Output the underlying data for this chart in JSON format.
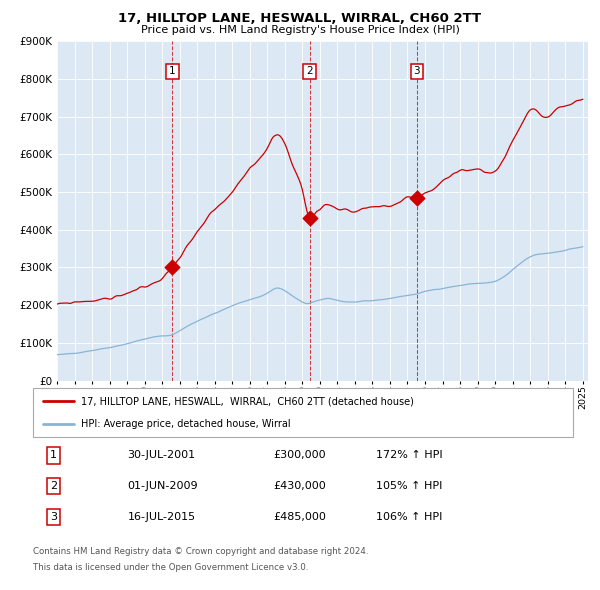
{
  "title": "17, HILLTOP LANE, HESWALL, WIRRAL, CH60 2TT",
  "subtitle": "Price paid vs. HM Land Registry's House Price Index (HPI)",
  "property_color": "#cc0000",
  "hpi_color": "#8ab4d4",
  "plot_bg": "#dce9f5",
  "ylim": [
    0,
    900000
  ],
  "yticks": [
    0,
    100000,
    200000,
    300000,
    400000,
    500000,
    600000,
    700000,
    800000,
    900000
  ],
  "xmin": 1995.0,
  "xmax": 2025.3,
  "sales": [
    {
      "num": 1,
      "date": "2001-07-30",
      "price": 300000,
      "pct": "172%",
      "x_year": 2001.58
    },
    {
      "num": 2,
      "date": "2009-06-01",
      "price": 430000,
      "pct": "105%",
      "x_year": 2009.42
    },
    {
      "num": 3,
      "date": "2015-07-16",
      "price": 485000,
      "pct": "106%",
      "x_year": 2015.54
    }
  ],
  "footer_line1": "Contains HM Land Registry data © Crown copyright and database right 2024.",
  "footer_line2": "This data is licensed under the Open Government Licence v3.0.",
  "legend_label1": "17, HILLTOP LANE, HESWALL,  WIRRAL,  CH60 2TT (detached house)",
  "legend_label2": "HPI: Average price, detached house, Wirral",
  "hpi_anchors": [
    [
      1995.0,
      68000
    ],
    [
      1996.0,
      73000
    ],
    [
      1997.0,
      80000
    ],
    [
      1998.0,
      88000
    ],
    [
      1999.0,
      98000
    ],
    [
      2000.0,
      110000
    ],
    [
      2001.0,
      118000
    ],
    [
      2001.58,
      122000
    ],
    [
      2002.0,
      132000
    ],
    [
      2003.0,
      158000
    ],
    [
      2004.0,
      178000
    ],
    [
      2005.0,
      198000
    ],
    [
      2006.0,
      215000
    ],
    [
      2007.0,
      232000
    ],
    [
      2007.5,
      245000
    ],
    [
      2008.0,
      238000
    ],
    [
      2008.5,
      222000
    ],
    [
      2009.0,
      208000
    ],
    [
      2009.42,
      205000
    ],
    [
      2009.5,
      206000
    ],
    [
      2010.0,
      213000
    ],
    [
      2010.5,
      218000
    ],
    [
      2011.0,
      213000
    ],
    [
      2012.0,
      208000
    ],
    [
      2013.0,
      212000
    ],
    [
      2014.0,
      218000
    ],
    [
      2015.0,
      226000
    ],
    [
      2015.54,
      230000
    ],
    [
      2016.0,
      236000
    ],
    [
      2017.0,
      245000
    ],
    [
      2018.0,
      252000
    ],
    [
      2019.0,
      258000
    ],
    [
      2020.0,
      263000
    ],
    [
      2021.0,
      293000
    ],
    [
      2022.0,
      328000
    ],
    [
      2023.0,
      338000
    ],
    [
      2024.0,
      346000
    ],
    [
      2025.0,
      355000
    ]
  ],
  "prop_anchors": [
    [
      1995.0,
      200000
    ],
    [
      1996.0,
      208000
    ],
    [
      1997.0,
      212000
    ],
    [
      1998.0,
      218000
    ],
    [
      1999.0,
      232000
    ],
    [
      2000.0,
      248000
    ],
    [
      2001.0,
      272000
    ],
    [
      2001.58,
      300000
    ],
    [
      2002.0,
      328000
    ],
    [
      2003.0,
      392000
    ],
    [
      2004.0,
      452000
    ],
    [
      2005.0,
      498000
    ],
    [
      2006.0,
      562000
    ],
    [
      2007.0,
      618000
    ],
    [
      2007.6,
      655000
    ],
    [
      2008.0,
      628000
    ],
    [
      2008.5,
      565000
    ],
    [
      2009.0,
      505000
    ],
    [
      2009.42,
      430000
    ],
    [
      2009.8,
      452000
    ],
    [
      2010.0,
      458000
    ],
    [
      2010.5,
      468000
    ],
    [
      2011.0,
      458000
    ],
    [
      2011.5,
      452000
    ],
    [
      2012.0,
      448000
    ],
    [
      2012.5,
      458000
    ],
    [
      2013.0,
      458000
    ],
    [
      2013.5,
      462000
    ],
    [
      2014.0,
      462000
    ],
    [
      2014.5,
      472000
    ],
    [
      2015.0,
      488000
    ],
    [
      2015.54,
      485000
    ],
    [
      2016.0,
      498000
    ],
    [
      2016.5,
      508000
    ],
    [
      2017.0,
      528000
    ],
    [
      2017.5,
      542000
    ],
    [
      2018.0,
      552000
    ],
    [
      2018.5,
      558000
    ],
    [
      2019.0,
      562000
    ],
    [
      2019.5,
      552000
    ],
    [
      2020.0,
      558000
    ],
    [
      2020.5,
      588000
    ],
    [
      2021.0,
      638000
    ],
    [
      2021.5,
      678000
    ],
    [
      2022.0,
      718000
    ],
    [
      2022.5,
      708000
    ],
    [
      2023.0,
      698000
    ],
    [
      2023.5,
      718000
    ],
    [
      2024.0,
      728000
    ],
    [
      2024.5,
      738000
    ],
    [
      2025.0,
      748000
    ]
  ]
}
